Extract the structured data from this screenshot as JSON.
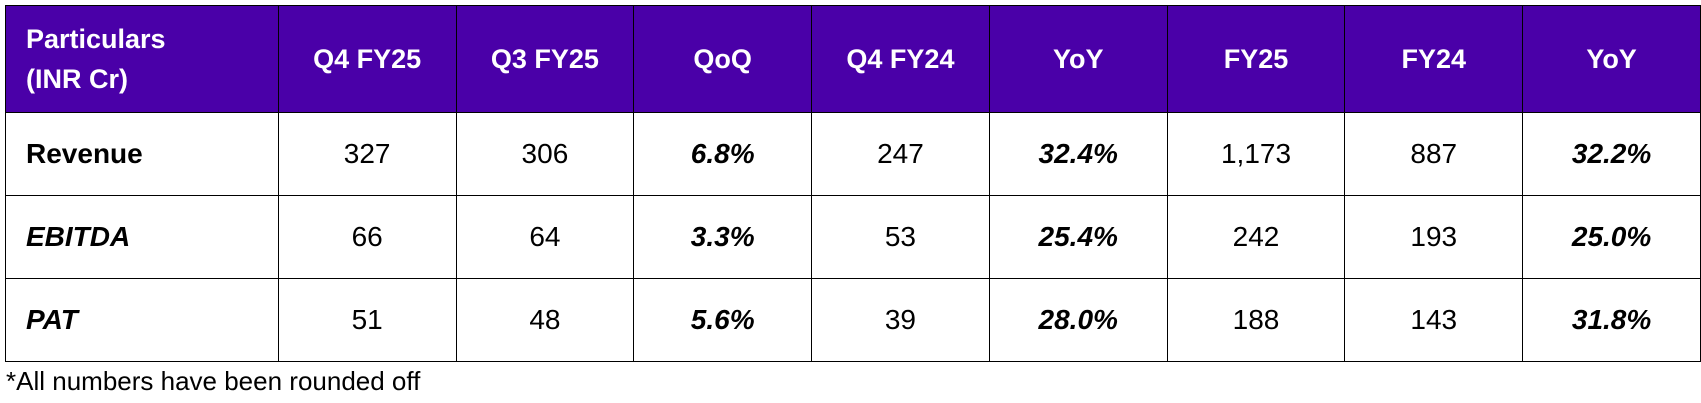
{
  "header": {
    "particulars_line1": "Particulars",
    "particulars_line2": "(INR Cr)",
    "columns": [
      "Q4 FY25",
      "Q3 FY25",
      "QoQ",
      "Q4 FY24",
      "YoY",
      "FY25",
      "FY24",
      "YoY"
    ]
  },
  "rows": [
    {
      "label": "Revenue",
      "cells": [
        "327",
        "306",
        "6.8%",
        "247",
        "32.4%",
        "1,173",
        "887",
        "32.2%"
      ]
    },
    {
      "label": "EBITDA",
      "cells": [
        "66",
        "64",
        "3.3%",
        "53",
        "25.4%",
        "242",
        "193",
        "25.0%"
      ]
    },
    {
      "label": "PAT",
      "cells": [
        "51",
        "48",
        "5.6%",
        "39",
        "28.0%",
        "188",
        "143",
        "31.8%"
      ]
    }
  ],
  "footnote": "*All numbers have been rounded off",
  "colors": {
    "header_bg": "#4a00a8",
    "header_text": "#ffffff",
    "border": "#000000"
  }
}
